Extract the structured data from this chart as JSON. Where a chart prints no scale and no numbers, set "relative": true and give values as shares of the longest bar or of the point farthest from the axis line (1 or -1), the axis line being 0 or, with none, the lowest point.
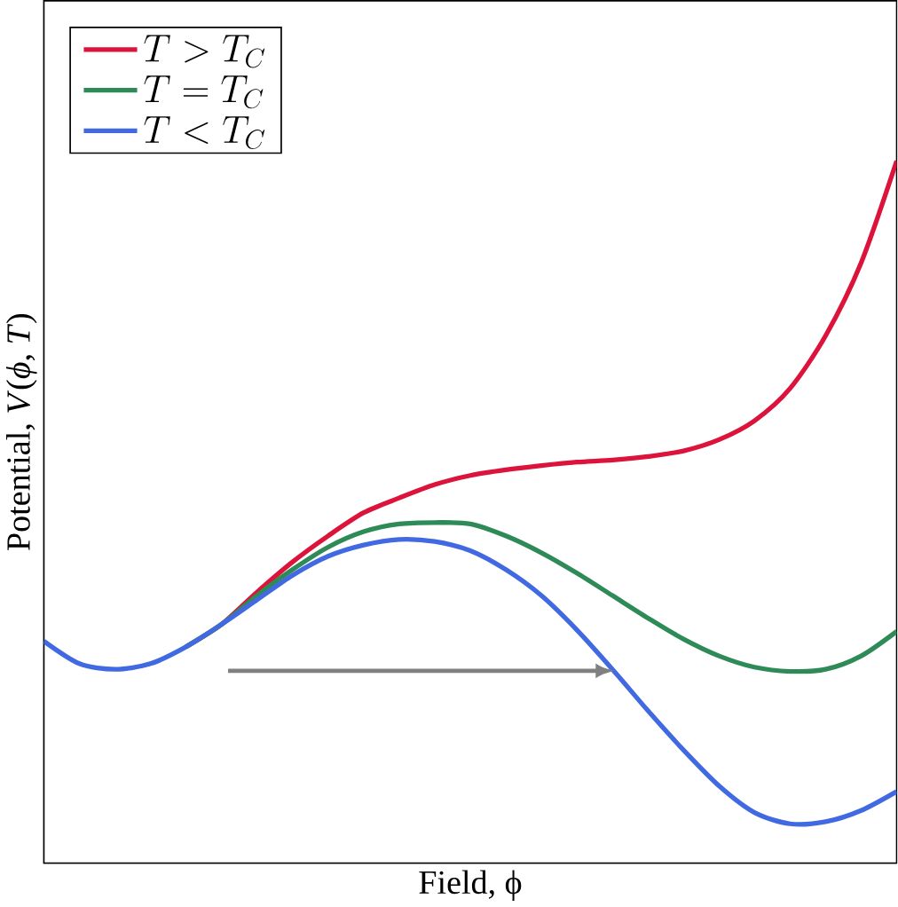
{
  "chart_data": {
    "type": "line",
    "relative": true,
    "xlabel": "Field, ϕ",
    "ylabel": "Potential, *V*(*ϕ*, *T*)",
    "legend": "top left",
    "categories": [
      null,
      null,
      null,
      null,
      null,
      null,
      null,
      null,
      null,
      null,
      null,
      null,
      null,
      null,
      null,
      null,
      null,
      null,
      null,
      null,
      null,
      null,
      null,
      null,
      null
    ],
    "series": [
      {
        "name": "T > T_C",
        "color": "#dc143c",
        "values": [
          null,
          null,
          null,
          null,
          0.308,
          0.34,
          0.386,
          0.429,
          0.466,
          0.499,
          0.52,
          0.539,
          0.552,
          0.56,
          0.566,
          0.571,
          0.574,
          0.579,
          0.587,
          0.603,
          0.63,
          0.676,
          0.751,
          0.855,
          1
        ]
      },
      {
        "name": "T = T_C",
        "color": "#2e8b57",
        "values": [
          null,
          null,
          null,
          null,
          0.308,
          0.34,
          0.381,
          0.418,
          0.45,
          0.472,
          0.483,
          0.485,
          0.483,
          0.466,
          0.442,
          0.413,
          0.381,
          0.349,
          0.319,
          0.295,
          0.279,
          0.273,
          0.276,
          0.295,
          0.33
        ]
      },
      {
        "name": "T < T_C",
        "color": "#4169e1",
        "values": [
          0.316,
          0.284,
          0.276,
          0.284,
          0.308,
          0.34,
          0.375,
          0.41,
          0.437,
          0.453,
          0.461,
          0.458,
          0.445,
          0.418,
          0.381,
          0.332,
          0.276,
          0.217,
          0.161,
          0.11,
          0.072,
          0.056,
          0.059,
          0.075,
          0.102
        ]
      }
    ]
  }
}
